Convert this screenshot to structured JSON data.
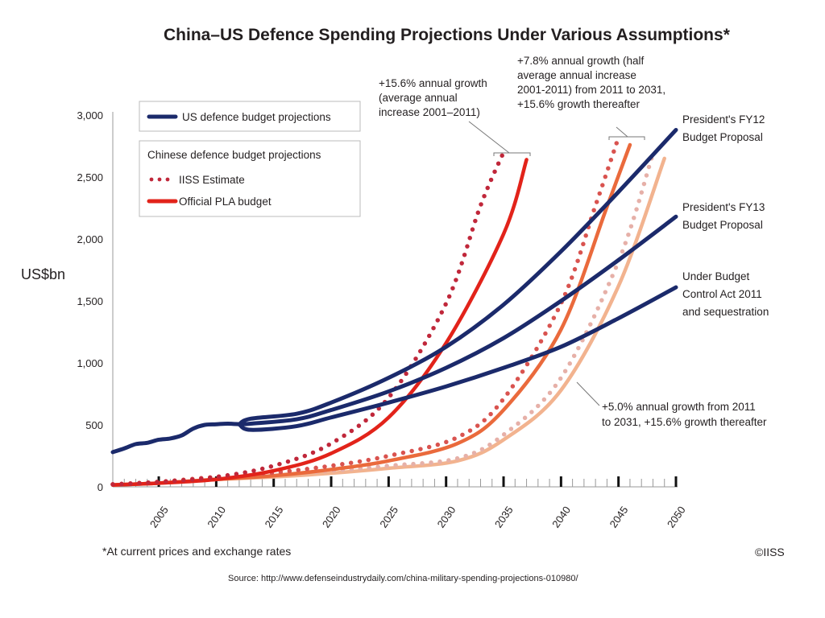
{
  "chart_data": {
    "type": "line",
    "title": "China–US Defence Spending Projections Under Various Assumptions*",
    "xlabel": "",
    "ylabel": "US$bn",
    "xlim": [
      2001,
      2050
    ],
    "ylim": [
      0,
      3000
    ],
    "grid": false,
    "y_ticks": [
      0,
      500,
      1000,
      1500,
      2000,
      2500,
      3000
    ],
    "y_tick_labels": [
      "0",
      "500",
      "1,000",
      "1,500",
      "2,000",
      "2,500",
      "3,000"
    ],
    "x_major_ticks": [
      2005,
      2010,
      2015,
      2020,
      2025,
      2030,
      2035,
      2040,
      2045,
      2050
    ],
    "x_tick_labels": [
      "2005",
      "2010",
      "2015",
      "2020",
      "2025",
      "2030",
      "2035",
      "2040",
      "2045",
      "2050"
    ],
    "legend": {
      "placement": "top-left",
      "us_entry": "US defence budget projections",
      "china_heading": "Chinese defence budget projections",
      "china_entries": [
        "IISS Estimate",
        "Official PLA budget"
      ]
    },
    "colors": {
      "us": "#1b2a6b",
      "iiss_15_6": "#c0273a",
      "pla_15_6": "#e2231a",
      "iiss_7_8": "#d9534f",
      "pla_7_8": "#ea6a3c",
      "iiss_5_0": "#e6b0a8",
      "pla_5_0": "#f2b38f",
      "bracket": "#777777"
    },
    "series": [
      {
        "name": "US historical",
        "group": "us",
        "style": "solid",
        "x": [
          2001,
          2002,
          2003,
          2004,
          2005,
          2006,
          2007,
          2008,
          2009,
          2010,
          2011,
          2012
        ],
        "y": [
          280,
          310,
          345,
          355,
          380,
          390,
          415,
          470,
          500,
          505,
          510,
          505
        ]
      },
      {
        "name": "President's FY12 Budget Proposal",
        "group": "us",
        "style": "solid",
        "x": [
          2012,
          2013,
          2017,
          2020,
          2025,
          2030,
          2035,
          2040,
          2045,
          2050
        ],
        "y": [
          505,
          550,
          590,
          680,
          880,
          1130,
          1470,
          1900,
          2380,
          2880
        ]
      },
      {
        "name": "President's FY13 Budget Proposal",
        "group": "us",
        "style": "solid",
        "x": [
          2012,
          2013,
          2017,
          2020,
          2025,
          2030,
          2035,
          2040,
          2045,
          2050
        ],
        "y": [
          505,
          510,
          545,
          620,
          770,
          960,
          1200,
          1500,
          1830,
          2180
        ]
      },
      {
        "name": "Under Budget Control Act 2011 and sequestration",
        "group": "us",
        "style": "solid",
        "x": [
          2012,
          2013,
          2017,
          2020,
          2025,
          2030,
          2035,
          2040,
          2045,
          2050
        ],
        "y": [
          505,
          460,
          490,
          560,
          680,
          810,
          960,
          1130,
          1360,
          1610
        ]
      },
      {
        "name": "IISS Estimate (+15.6%)",
        "group": "china",
        "style": "dotted",
        "x": [
          2001,
          2005,
          2010,
          2015,
          2020,
          2025,
          2030,
          2033,
          2035
        ],
        "y": [
          20,
          40,
          80,
          170,
          350,
          720,
          1480,
          2270,
          2700
        ]
      },
      {
        "name": "Official PLA budget (+15.6%)",
        "group": "china",
        "style": "solid",
        "x": [
          2001,
          2005,
          2010,
          2015,
          2020,
          2025,
          2030,
          2035,
          2037
        ],
        "y": [
          15,
          30,
          60,
          130,
          270,
          560,
          1160,
          2040,
          2640
        ]
      },
      {
        "name": "IISS Estimate (+7.8% to 2031, +15.6% after)",
        "group": "china",
        "style": "dotted",
        "x": [
          2001,
          2005,
          2010,
          2015,
          2020,
          2025,
          2031,
          2035,
          2040,
          2043,
          2045
        ],
        "y": [
          20,
          40,
          80,
          115,
          170,
          250,
          400,
          710,
          1480,
          2270,
          2820
        ]
      },
      {
        "name": "Official PLA budget (+7.8% to 2031, +15.6% after)",
        "group": "china",
        "style": "solid",
        "x": [
          2001,
          2005,
          2010,
          2015,
          2020,
          2025,
          2031,
          2035,
          2040,
          2044,
          2046
        ],
        "y": [
          15,
          30,
          60,
          90,
          140,
          210,
          350,
          620,
          1270,
          2260,
          2760
        ]
      },
      {
        "name": "IISS Estimate (+5.0% to 2031, +15.6% after)",
        "group": "china",
        "style": "dotted",
        "x": [
          2001,
          2005,
          2010,
          2015,
          2020,
          2025,
          2031,
          2035,
          2040,
          2045,
          2048
        ],
        "y": [
          20,
          40,
          80,
          100,
          130,
          170,
          230,
          420,
          880,
          1820,
          2690
        ]
      },
      {
        "name": "Official PLA budget (+5.0% to 2031, +15.6% after)",
        "group": "china",
        "style": "solid",
        "x": [
          2001,
          2005,
          2010,
          2015,
          2020,
          2025,
          2031,
          2035,
          2040,
          2045,
          2049
        ],
        "y": [
          15,
          30,
          60,
          80,
          110,
          150,
          210,
          380,
          780,
          1620,
          2650
        ]
      }
    ],
    "annotations": {
      "growth_15_6": [
        "+15.6% annual growth",
        "(average annual",
        "increase 2001–2011)"
      ],
      "growth_7_8": [
        "+7.8% annual growth (half",
        "average annual increase",
        "2001-2011) from 2011 to 2031,",
        "+15.6% growth thereafter"
      ],
      "growth_5_0": [
        "+5.0% annual growth from 2011",
        "to 2031, +15.6% growth thereafter"
      ],
      "fy12": [
        "President's FY12",
        "Budget Proposal"
      ],
      "fy13": [
        "President's FY13",
        "Budget Proposal"
      ],
      "bca": [
        "Under Budget",
        "Control Act 2011",
        "and sequestration"
      ]
    }
  },
  "footer": {
    "footnote": "*At current prices and exchange rates",
    "copyright": "©IISS",
    "source": "Source: http://www.defenseindustrydaily.com/china-military-spending-projections-010980/"
  }
}
